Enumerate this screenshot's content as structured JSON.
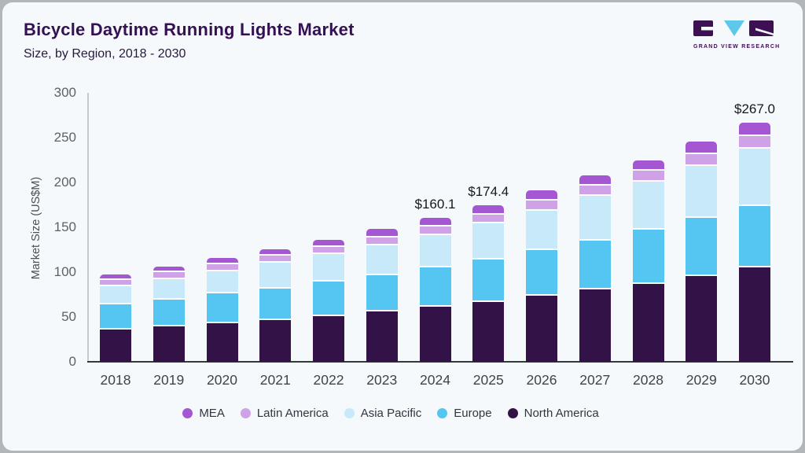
{
  "header": {
    "title": "Bicycle Daytime Running Lights Market",
    "subtitle": "Size, by Region, 2018 - 2030"
  },
  "logo": {
    "caption": "GRAND VIEW RESEARCH",
    "square_color": "#3d1054",
    "triangle_color": "#5ec8ea"
  },
  "chart_data": {
    "type": "bar",
    "stacked": true,
    "title": "Bicycle Daytime Running Lights Market Size, by Region, 2018 - 2030",
    "ylabel": "Market Size (US$M)",
    "ylim": [
      0,
      300
    ],
    "yticks": [
      0,
      50,
      100,
      150,
      200,
      250,
      300
    ],
    "grid": false,
    "legend_position": "bottom",
    "categories": [
      "2018",
      "2019",
      "2020",
      "2021",
      "2022",
      "2023",
      "2024",
      "2025",
      "2026",
      "2027",
      "2028",
      "2029",
      "2030"
    ],
    "series": [
      {
        "name": "North America",
        "color": "#331347",
        "values": [
          38,
          41,
          45,
          48,
          53,
          58,
          63,
          68.5,
          75,
          82,
          89,
          97,
          107
        ]
      },
      {
        "name": "Europe",
        "color": "#55c6f1",
        "values": [
          28,
          30,
          33,
          35,
          38,
          40,
          44.4,
          47.5,
          51,
          55,
          60,
          65,
          68.5
        ]
      },
      {
        "name": "Asia Pacific",
        "color": "#c7e9f9",
        "values": [
          20,
          23,
          25,
          29,
          30.5,
          34,
          35.6,
          40.5,
          44,
          49.5,
          54,
          58,
          64
        ]
      },
      {
        "name": "Latin America",
        "color": "#cfa2e8",
        "values": [
          7,
          7.5,
          7.5,
          8,
          8.5,
          8.5,
          10,
          9.5,
          11.5,
          11.5,
          11.5,
          13.5,
          14
        ]
      },
      {
        "name": "MEA",
        "color": "#a556d2",
        "values": [
          4.5,
          5,
          5,
          5.5,
          6,
          7.5,
          7.1,
          8.4,
          9.5,
          10,
          10.5,
          12.5,
          13.5
        ]
      }
    ],
    "total_labels": {
      "2024": "$160.1",
      "2025": "$174.4",
      "2030": "$267.0"
    }
  }
}
